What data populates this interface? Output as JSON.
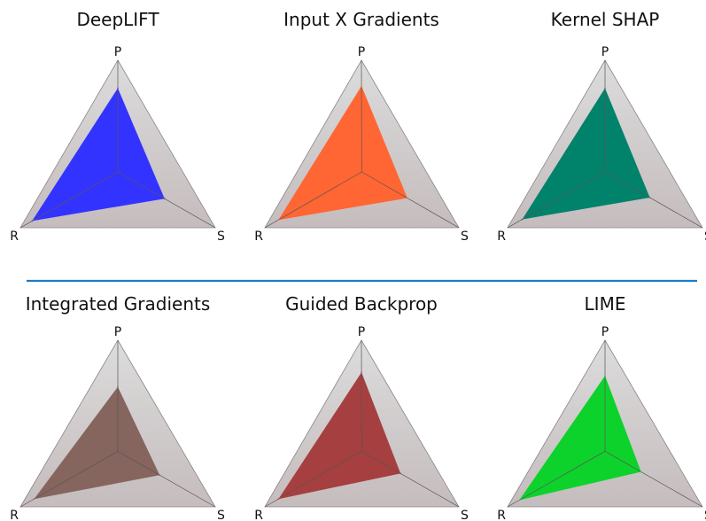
{
  "chart_data": [
    {
      "type": "radar",
      "title": "DeepLIFT",
      "axes": [
        "P",
        "S",
        "R"
      ],
      "values": [
        0.75,
        0.48,
        0.88
      ],
      "range": [
        0,
        1
      ],
      "color": "#3333ff"
    },
    {
      "type": "radar",
      "title": "Input X Gradients",
      "axes": [
        "P",
        "S",
        "R"
      ],
      "values": [
        0.77,
        0.47,
        0.86
      ],
      "range": [
        0,
        1
      ],
      "color": "#ff6633"
    },
    {
      "type": "radar",
      "title": "Kernel SHAP",
      "axes": [
        "P",
        "S",
        "R"
      ],
      "values": [
        0.75,
        0.46,
        0.85
      ],
      "range": [
        0,
        1
      ],
      "color": "#00826b"
    },
    {
      "type": "radar",
      "title": "Integrated Gradients",
      "axes": [
        "P",
        "S",
        "R"
      ],
      "values": [
        0.58,
        0.43,
        0.86
      ],
      "range": [
        0,
        1
      ],
      "color": "#86655f"
    },
    {
      "type": "radar",
      "title": "Guided Backprop",
      "axes": [
        "P",
        "S",
        "R"
      ],
      "values": [
        0.71,
        0.4,
        0.86
      ],
      "range": [
        0,
        1
      ],
      "color": "#a63f3f"
    },
    {
      "type": "radar",
      "title": "LIME",
      "axes": [
        "P",
        "S",
        "R"
      ],
      "values": [
        0.68,
        0.37,
        0.88
      ],
      "range": [
        0,
        1
      ],
      "color": "#0ed22c"
    }
  ],
  "separator_color": "#1a7dc4",
  "background_gradient": [
    "#dcdcdc",
    "#c5bcbd"
  ]
}
